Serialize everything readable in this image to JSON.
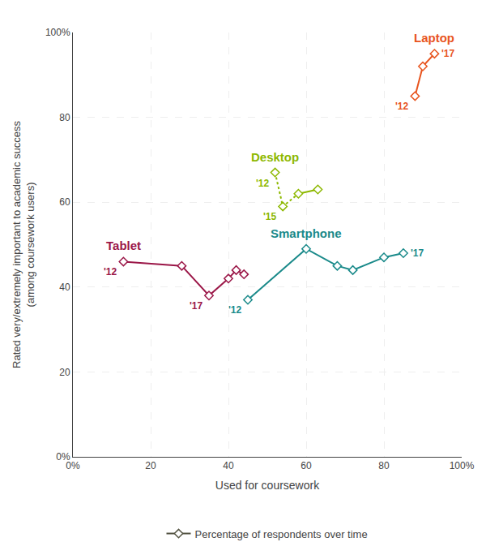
{
  "chart_data": {
    "type": "line",
    "x_label": "Used for coursework",
    "y_label": "Rated very/extremely important to academic success\n(among coursework users)",
    "xlim": [
      0,
      100
    ],
    "ylim": [
      0,
      100
    ],
    "xticks": [
      {
        "value": 0,
        "label": "0%"
      },
      20,
      40,
      60,
      80,
      {
        "value": 100,
        "label": "100%"
      }
    ],
    "yticks": [
      {
        "value": 0,
        "label": "0%"
      },
      20,
      40,
      60,
      80,
      {
        "value": 100,
        "label": "100%"
      }
    ],
    "grid": true,
    "legend": "bottom",
    "marker": "diamond",
    "legend_entry": {
      "name": "Percentage of respondents over time",
      "color": "#555544"
    },
    "series": [
      {
        "name": "Laptop",
        "color": "#e8541e",
        "x": [
          88,
          90,
          93
        ],
        "values": [
          85,
          92,
          95
        ],
        "labels": [
          "'12",
          null,
          "'17"
        ],
        "line_style": "solid"
      },
      {
        "name": "Desktop",
        "color": "#8db800",
        "x": [
          52,
          54,
          58,
          63
        ],
        "values": [
          67,
          59,
          62,
          63
        ],
        "labels": [
          "'12",
          "'15",
          null,
          null
        ],
        "line_style": [
          "dotted",
          "dotted",
          "solid"
        ]
      },
      {
        "name": "Smartphone",
        "color": "#1a8a8a",
        "x": [
          45,
          60,
          68,
          72,
          80,
          85
        ],
        "values": [
          37,
          49,
          45,
          44,
          47,
          48
        ],
        "labels": [
          "'12",
          null,
          null,
          null,
          null,
          "'17"
        ],
        "line_style": "solid"
      },
      {
        "name": "Tablet",
        "color": "#9b1748",
        "x": [
          13,
          28,
          35,
          40,
          42,
          44
        ],
        "values": [
          46,
          45,
          38,
          42,
          44,
          43
        ],
        "labels": [
          "'12",
          null,
          "'17",
          null,
          null,
          null
        ],
        "line_style": "solid"
      }
    ]
  }
}
